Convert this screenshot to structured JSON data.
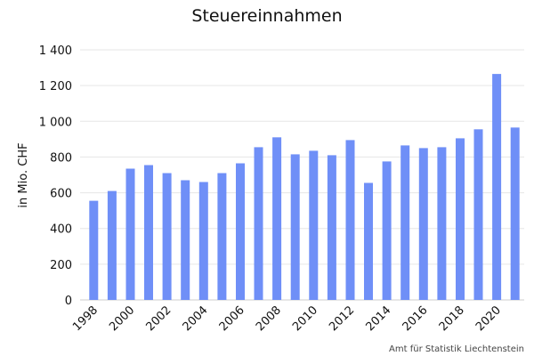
{
  "chart_data": {
    "type": "bar",
    "title": "Steuereinnahmen",
    "xlabel": "",
    "ylabel": "in Mio. CHF",
    "source": "Amt für Statistik Liechtenstein",
    "ylim": [
      0,
      1400
    ],
    "yticks": [
      0,
      200,
      400,
      600,
      800,
      1000,
      1200,
      1400
    ],
    "ytick_labels": [
      "0",
      "200",
      "400",
      "600",
      "800",
      "1 000",
      "1 200",
      "1 400"
    ],
    "categories": [
      "1998",
      "1999",
      "2000",
      "2001",
      "2002",
      "2003",
      "2004",
      "2005",
      "2006",
      "2007",
      "2008",
      "2009",
      "2010",
      "2011",
      "2012",
      "2013",
      "2014",
      "2015",
      "2016",
      "2017",
      "2018",
      "2019",
      "2020",
      "2021"
    ],
    "xtick_labels": [
      "1998",
      "2000",
      "2002",
      "2004",
      "2006",
      "2008",
      "2010",
      "2012",
      "2014",
      "2016",
      "2018",
      "2020"
    ],
    "values": [
      555,
      610,
      735,
      755,
      710,
      670,
      660,
      710,
      765,
      855,
      910,
      815,
      835,
      810,
      895,
      655,
      775,
      865,
      850,
      855,
      905,
      955,
      1265,
      965
    ],
    "bar_color": "#6f8ff7",
    "grid": true,
    "grid_color": "#e6e6e6",
    "legend": "none"
  }
}
